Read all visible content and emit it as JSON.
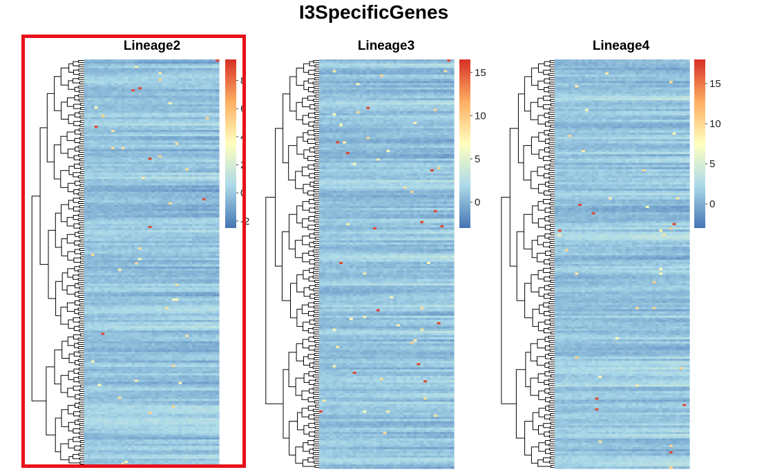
{
  "title": "I3SpecificGenes",
  "colors": {
    "highlight": "#e8101a",
    "low": "#4575b4",
    "mid_low": "#abd9e9",
    "mid": "#ffffbf",
    "mid_high": "#fdae61",
    "high": "#d73027"
  },
  "chart_data": [
    {
      "type": "heatmap",
      "title": "Lineage2",
      "highlighted": true,
      "colorbar_ticks": [
        "-2",
        "0",
        "2",
        "4",
        "6",
        "8"
      ],
      "value_range": [
        -2.5,
        9.5
      ],
      "rows": 190,
      "cols": 40
    },
    {
      "type": "heatmap",
      "title": "Lineage3",
      "highlighted": false,
      "colorbar_ticks": [
        "0",
        "5",
        "10",
        "15"
      ],
      "value_range": [
        -3,
        16.5
      ],
      "rows": 190,
      "cols": 40
    },
    {
      "type": "heatmap",
      "title": "Lineage4",
      "highlighted": false,
      "colorbar_ticks": [
        "0",
        "5",
        "10",
        "15"
      ],
      "value_range": [
        -3,
        18
      ],
      "rows": 190,
      "cols": 40
    }
  ]
}
